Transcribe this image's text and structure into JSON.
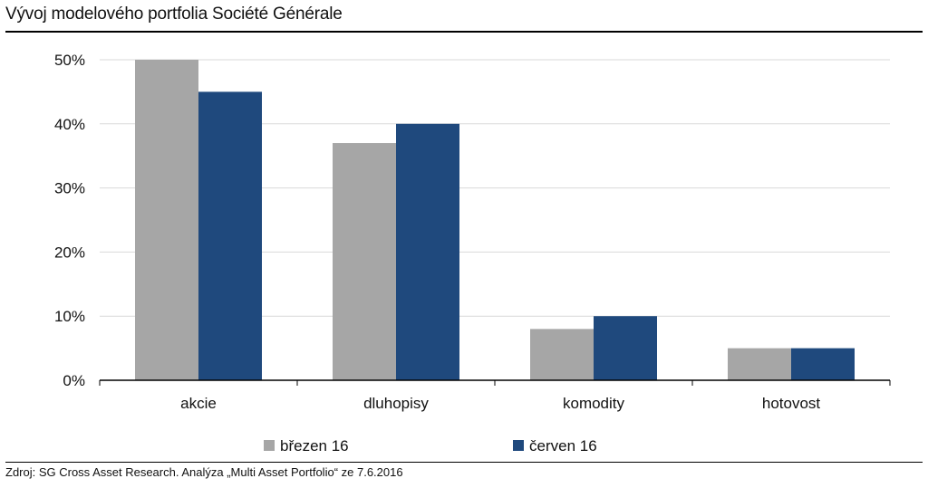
{
  "title": "Vývoj modelového portfolia Société Générale",
  "source": "Zdroj: SG Cross Asset Research. Analýza „Multi Asset Portfolio“ ze 7.6.2016",
  "colors": {
    "brezen": "#a6a6a6",
    "cerven": "#1f497d",
    "grid": "#d9d9d9",
    "axis": "#000000"
  },
  "chart_data": {
    "type": "bar",
    "categories": [
      "akcie",
      "dluhopisy",
      "komodity",
      "hotovost"
    ],
    "series": [
      {
        "name": "březen 16",
        "values": [
          50,
          37,
          8,
          5
        ]
      },
      {
        "name": "červen 16",
        "values": [
          45,
          40,
          10,
          5
        ]
      }
    ],
    "ylim": [
      0,
      50
    ],
    "yticks": [
      0,
      10,
      20,
      30,
      40,
      50
    ],
    "ytick_labels": [
      "0%",
      "10%",
      "20%",
      "30%",
      "40%",
      "50%"
    ],
    "grid": true,
    "legend": "bottom",
    "xlabel": "",
    "ylabel": ""
  }
}
